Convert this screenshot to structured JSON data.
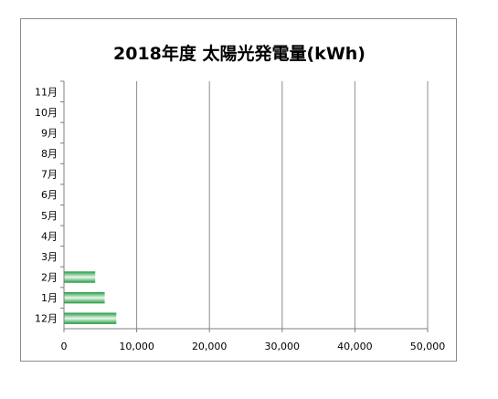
{
  "chart_data": {
    "type": "bar",
    "orientation": "horizontal",
    "title": "2018年度 太陽光発電量(kWh)",
    "xlabel": "",
    "ylabel": "",
    "categories": [
      "12月",
      "1月",
      "2月",
      "3月",
      "4月",
      "5月",
      "6月",
      "7月",
      "8月",
      "9月",
      "10月",
      "11月"
    ],
    "values": [
      7200,
      5600,
      4300,
      0,
      0,
      0,
      0,
      0,
      0,
      0,
      0,
      0
    ],
    "xlim": [
      0,
      50000
    ],
    "xticks": [
      0,
      10000,
      20000,
      30000,
      40000,
      50000
    ],
    "xtick_labels": [
      "0",
      "10,000",
      "20,000",
      "30,000",
      "40,000",
      "50,000"
    ],
    "grid": "vertical",
    "legend": "none",
    "colors": {
      "bar_dark": "#1f9a3c",
      "bar_light": "#eaf7ee",
      "grid": "#8c8c8c",
      "axis": "#7f7f7f"
    }
  }
}
